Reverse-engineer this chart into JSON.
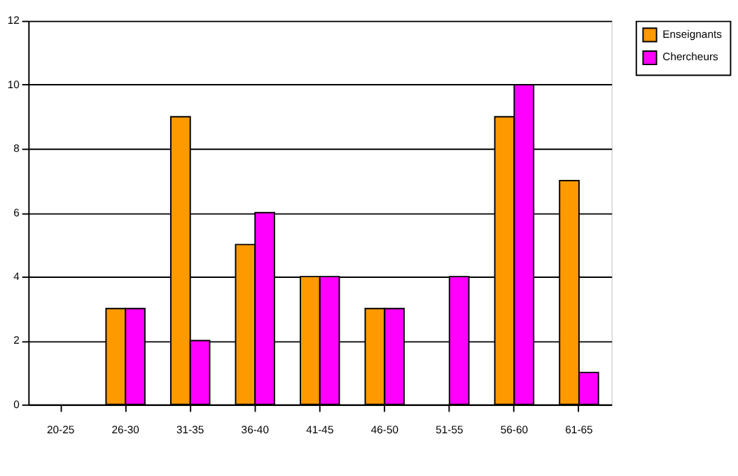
{
  "chart_data": {
    "type": "bar",
    "categories": [
      "20-25",
      "26-30",
      "31-35",
      "36-40",
      "41-45",
      "46-50",
      "51-55",
      "56-60",
      "61-65"
    ],
    "series": [
      {
        "name": "Enseignants",
        "color": "#ff9900",
        "values": [
          null,
          3,
          9,
          5,
          4,
          3,
          null,
          9,
          7
        ]
      },
      {
        "name": "Chercheurs",
        "color": "#ff00ff",
        "values": [
          null,
          3,
          2,
          6,
          4,
          3,
          4,
          10,
          1
        ]
      }
    ],
    "ylim": [
      0,
      12
    ],
    "yticks": [
      0,
      2,
      4,
      6,
      8,
      10,
      12
    ],
    "grid": "y",
    "legend": "right"
  }
}
